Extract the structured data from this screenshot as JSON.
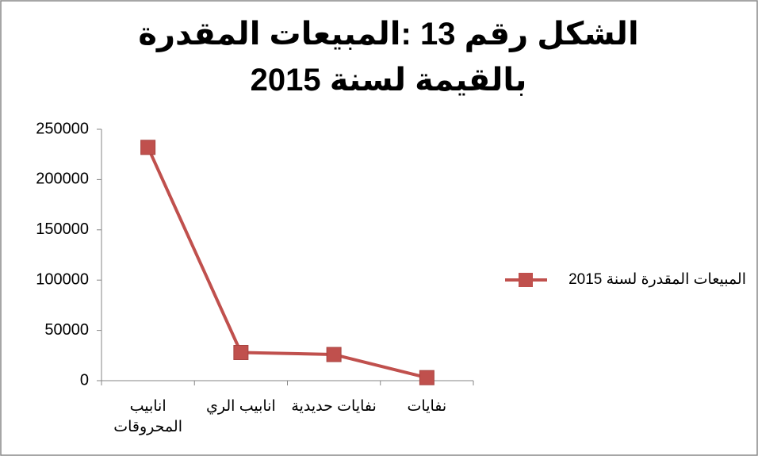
{
  "chart_data": {
    "type": "line",
    "title": "الشكل رقم 13 :المبيعات المقدرة بالقيمة لسنة 2015",
    "categories": [
      "انابيب المحروقات",
      "انابيب الري",
      "نفايات حديدية",
      "نفايات"
    ],
    "series": [
      {
        "name": "المبيعات المقدرة لسنة 2015",
        "color": "#c0504d",
        "values": [
          232000,
          28000,
          26000,
          3000
        ]
      }
    ],
    "ylim": [
      0,
      250000
    ],
    "yticks": [
      0,
      50000,
      100000,
      150000,
      200000,
      250000
    ],
    "legend": "right"
  }
}
